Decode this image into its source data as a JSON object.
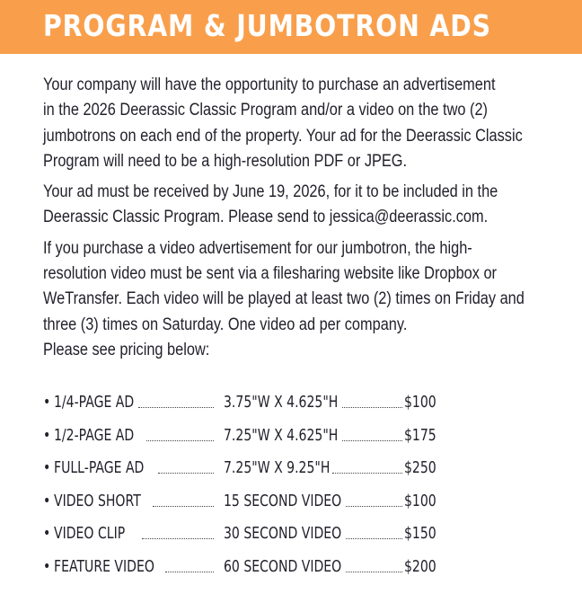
{
  "colors": {
    "accent": "#F99F4C",
    "text": "#23212b"
  },
  "header": {
    "title": "PROGRAM & JUMBOTRON ADS"
  },
  "paragraphs": [
    [
      "Your company will have the opportunity to purchase an advertisement",
      "in the 2026 Deerassic Classic Program and/or a video on the two (2)",
      "jumbotrons on each end of the property. Your ad for the Deerassic Classic",
      "Program will need to be a high-resolution PDF or JPEG."
    ],
    [
      "Your ad must be received by June 19, 2026, for it to be included in the",
      "Deerassic Classic Program. Please send to jessica@deerassic.com."
    ],
    [
      "If you purchase a video advertisement for our jumbotron, the high-",
      "resolution video must be sent via a filesharing website like Dropbox or",
      "WeTransfer. Each video will be played at least two (2) times on Friday and",
      "three (3) times on Saturday. One video ad per company.",
      "Please see pricing below:"
    ]
  ],
  "pricing": [
    {
      "item": "1/4-PAGE AD",
      "spec": "3.75\"W X 4.625\"H",
      "price": "$100"
    },
    {
      "item": "1/2-PAGE AD",
      "spec": "7.25\"W X 4.625\"H",
      "price": "$175"
    },
    {
      "item": "FULL-PAGE AD",
      "spec": "7.25\"W X 9.25\"H",
      "price": "$250"
    },
    {
      "item": "VIDEO SHORT",
      "spec": "15 SECOND VIDEO",
      "price": "$100"
    },
    {
      "item": "VIDEO CLIP",
      "spec": "30 SECOND VIDEO",
      "price": "$150"
    },
    {
      "item": "FEATURE VIDEO",
      "spec": "60 SECOND VIDEO",
      "price": "$200"
    }
  ],
  "bullet": "•"
}
